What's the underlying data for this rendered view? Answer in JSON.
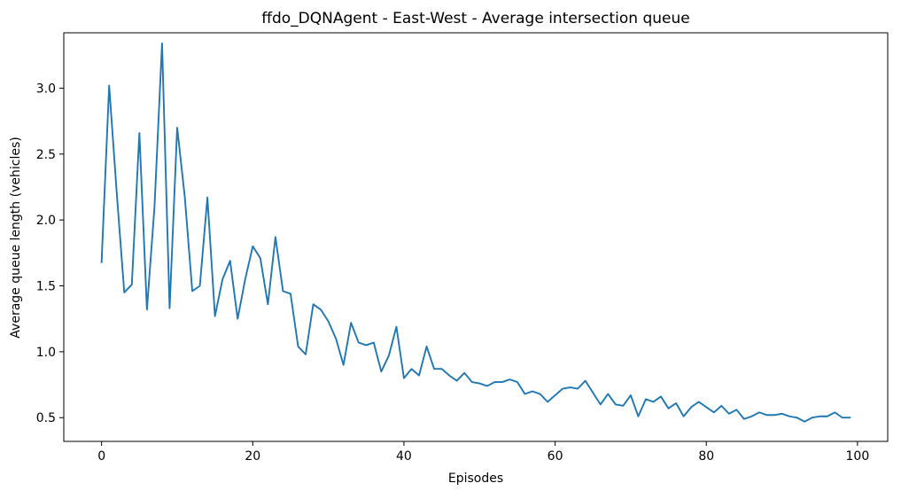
{
  "chart_data": {
    "type": "line",
    "title": "ffdo_DQNAgent - East-West - Average intersection queue",
    "xlabel": "Episodes",
    "ylabel": "Average queue length (vehicles)",
    "xlim": [
      -5,
      104
    ],
    "ylim": [
      0.32,
      3.42
    ],
    "xticks": [
      0,
      20,
      40,
      60,
      80,
      100
    ],
    "xtick_labels": [
      "0",
      "20",
      "40",
      "60",
      "80",
      "100"
    ],
    "yticks": [
      0.5,
      1.0,
      1.5,
      2.0,
      2.5,
      3.0
    ],
    "ytick_labels": [
      "0.5",
      "1.0",
      "1.5",
      "2.0",
      "2.5",
      "3.0"
    ],
    "grid": false,
    "legend": false,
    "series": [
      {
        "color": "#1f77b4",
        "x": [
          0,
          1,
          2,
          3,
          4,
          5,
          6,
          7,
          8,
          9,
          10,
          11,
          12,
          13,
          14,
          15,
          16,
          17,
          18,
          19,
          20,
          21,
          22,
          23,
          24,
          25,
          26,
          27,
          28,
          29,
          30,
          31,
          32,
          33,
          34,
          35,
          36,
          37,
          38,
          39,
          40,
          41,
          42,
          43,
          44,
          45,
          46,
          47,
          48,
          49,
          50,
          51,
          52,
          53,
          54,
          55,
          56,
          57,
          58,
          59,
          60,
          61,
          62,
          63,
          64,
          65,
          66,
          67,
          68,
          69,
          70,
          71,
          72,
          73,
          74,
          75,
          76,
          77,
          78,
          79,
          80,
          81,
          82,
          83,
          84,
          85,
          86,
          87,
          88,
          89,
          90,
          91,
          92,
          93,
          94,
          95,
          96,
          97,
          98,
          99
        ],
        "y": [
          1.68,
          3.02,
          2.21,
          1.45,
          1.51,
          2.66,
          1.32,
          2.1,
          3.34,
          1.33,
          2.7,
          2.18,
          1.46,
          1.5,
          2.17,
          1.27,
          1.55,
          1.69,
          1.25,
          1.55,
          1.8,
          1.71,
          1.36,
          1.87,
          1.46,
          1.44,
          1.04,
          0.98,
          1.36,
          1.32,
          1.23,
          1.1,
          0.9,
          1.22,
          1.07,
          1.05,
          1.07,
          0.85,
          0.97,
          1.19,
          0.8,
          0.87,
          0.82,
          1.04,
          0.87,
          0.87,
          0.82,
          0.78,
          0.84,
          0.77,
          0.76,
          0.74,
          0.77,
          0.77,
          0.79,
          0.77,
          0.68,
          0.7,
          0.68,
          0.62,
          0.67,
          0.72,
          0.73,
          0.72,
          0.78,
          0.69,
          0.6,
          0.68,
          0.6,
          0.59,
          0.67,
          0.51,
          0.64,
          0.62,
          0.66,
          0.57,
          0.61,
          0.51,
          0.58,
          0.62,
          0.58,
          0.54,
          0.59,
          0.53,
          0.56,
          0.49,
          0.51,
          0.54,
          0.52,
          0.52,
          0.53,
          0.51,
          0.5,
          0.47,
          0.5,
          0.51,
          0.51,
          0.54,
          0.5,
          0.5
        ]
      }
    ]
  }
}
